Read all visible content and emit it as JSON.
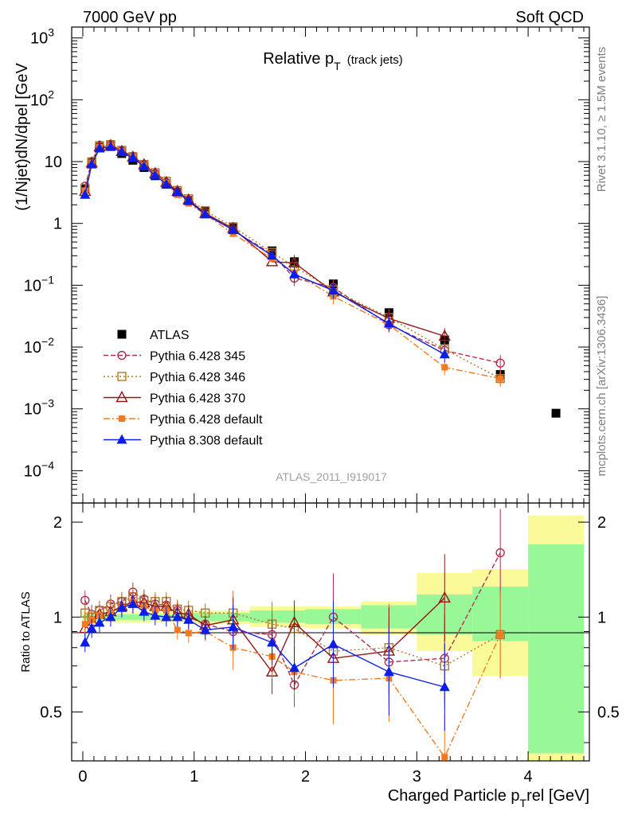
{
  "header": {
    "left": "7000 GeV pp",
    "right": "Soft QCD"
  },
  "side": {
    "rivet": "Rivet 3.1.10, ≥ 1.5M events",
    "mcplots": "mcplots.cern.ch [arXiv:1306.3436]"
  },
  "colors": {
    "ATLAS": "#000000",
    "Pythia 6.428 345": "#b03050",
    "Pythia 6.428 346": "#b07828",
    "Pythia 6.428 370": "#901818",
    "Pythia 6.428 default": "#f47a20",
    "Pythia 8.308 default": "#0a1ee8",
    "band_inner": "#98f898",
    "band_outer": "#fafa98"
  },
  "chart_data": {
    "type": "scatter",
    "title": "Relative p_T (track jets)",
    "title_main": "Relative p",
    "title_sub": "T",
    "title_note": "(track jets)",
    "watermark": "ATLAS_2011_I919017",
    "xlabel": "Charged Particle p",
    "xlabel_sub": "T",
    "xlabel_suffix": "rel [GeV]",
    "ylabel": "(1/Njet)dN/dp",
    "ylabel_suffix": "el [GeV",
    "ratio_ylabel": "Ratio to ATLAS",
    "xlim": [
      -0.1,
      4.55
    ],
    "ylim": [
      3e-05,
      1500
    ],
    "ylog": true,
    "ratio_ylim": [
      0.35,
      2.3
    ],
    "x_ticks": [
      "0",
      "1",
      "2",
      "3",
      "4"
    ],
    "y_ticks": [
      "10^-4",
      "10^-3",
      "10^-2",
      "10^-1",
      "1",
      "10",
      "10^2",
      "10^3"
    ],
    "ratio_ticks": [
      "0.5",
      "1",
      "2"
    ],
    "legend_position": "lower-left",
    "x": [
      0.02,
      0.08,
      0.15,
      0.25,
      0.35,
      0.45,
      0.55,
      0.65,
      0.75,
      0.85,
      0.95,
      1.1,
      1.35,
      1.7,
      1.9,
      2.25,
      2.75,
      3.25,
      3.75,
      4.25
    ],
    "series": [
      {
        "name": "ATLAS",
        "marker": "filled-square",
        "values": [
          3.6,
          9.8,
          17,
          17.5,
          13.5,
          10.5,
          8.0,
          5.9,
          4.3,
          3.2,
          2.35,
          1.55,
          0.85,
          0.36,
          0.24,
          0.105,
          0.036,
          0.013,
          0.0036,
          0.00085
        ]
      },
      {
        "name": "Pythia 6.428 345",
        "marker": "open-circle",
        "style": "dashed",
        "values": [
          4.0,
          10.0,
          18.5,
          19.0,
          15.0,
          12.2,
          8.9,
          6.4,
          4.6,
          3.3,
          2.35,
          1.5,
          0.77,
          0.32,
          0.13,
          0.092,
          0.023,
          0.0088,
          0.0055,
          null
        ],
        "ratio": [
          1.13,
          1.02,
          1.05,
          1.1,
          1.12,
          1.2,
          1.14,
          1.1,
          1.09,
          1.05,
          1.0,
          0.95,
          0.9,
          0.88,
          0.61,
          1.0,
          0.72,
          0.74,
          1.6,
          null
        ]
      },
      {
        "name": "Pythia 6.428 346",
        "marker": "open-square",
        "style": "dotted",
        "values": [
          3.7,
          9.9,
          18.0,
          18.8,
          15.2,
          12.0,
          9.0,
          6.6,
          4.8,
          3.4,
          2.5,
          1.6,
          0.88,
          0.34,
          0.2,
          0.084,
          0.03,
          0.0092,
          0.0031,
          null
        ],
        "ratio": [
          1.03,
          1.0,
          1.05,
          1.08,
          1.12,
          1.16,
          1.13,
          1.12,
          1.12,
          1.06,
          1.05,
          1.03,
          1.03,
          0.95,
          0.92,
          0.78,
          0.8,
          0.7,
          0.88,
          null
        ]
      },
      {
        "name": "Pythia 6.428 370",
        "marker": "open-triangle",
        "style": "solid",
        "values": [
          3.3,
          9.5,
          17.3,
          18.2,
          14.6,
          11.8,
          8.9,
          6.4,
          4.6,
          3.3,
          2.4,
          1.45,
          0.83,
          0.24,
          0.23,
          0.078,
          0.029,
          0.015,
          null,
          null
        ],
        "ratio": [
          0.92,
          0.97,
          1.02,
          1.04,
          1.08,
          1.12,
          1.11,
          1.08,
          1.08,
          1.03,
          1.02,
          0.94,
          0.98,
          0.67,
          0.96,
          0.74,
          0.78,
          1.15,
          null,
          null
        ]
      },
      {
        "name": "Pythia 6.428 default",
        "marker": "filled-square-small",
        "style": "dashdot",
        "values": [
          3.4,
          9.6,
          17.2,
          18.0,
          14.5,
          11.7,
          8.6,
          6.2,
          4.5,
          2.9,
          2.1,
          1.4,
          0.68,
          0.27,
          0.16,
          0.066,
          0.023,
          0.0047,
          0.0031,
          null
        ],
        "ratio": [
          0.95,
          0.98,
          1.01,
          1.03,
          1.07,
          1.11,
          1.08,
          1.05,
          1.05,
          0.91,
          0.89,
          0.9,
          0.8,
          0.75,
          0.67,
          0.63,
          0.64,
          0.36,
          0.88,
          null
        ]
      },
      {
        "name": "Pythia 8.308 default",
        "marker": "filled-triangle",
        "style": "solid",
        "values": [
          2.9,
          9.0,
          16.3,
          17.4,
          14.4,
          11.5,
          8.3,
          6.0,
          4.3,
          3.2,
          2.3,
          1.4,
          0.78,
          0.3,
          0.15,
          0.082,
          0.024,
          0.0076,
          null,
          null
        ],
        "ratio": [
          0.83,
          0.92,
          0.96,
          1.0,
          1.07,
          1.1,
          1.04,
          1.01,
          1.0,
          1.0,
          0.98,
          0.91,
          0.93,
          0.83,
          0.69,
          0.82,
          0.67,
          0.6,
          null,
          null
        ]
      }
    ],
    "ratio_bands": [
      {
        "x": [
          0.0,
          1.0
        ],
        "inner": [
          0.98,
          1.02
        ],
        "outer": [
          0.96,
          1.04
        ]
      },
      {
        "x": [
          1.0,
          1.5
        ],
        "inner": [
          0.97,
          1.03
        ],
        "outer": [
          0.95,
          1.05
        ]
      },
      {
        "x": [
          1.5,
          2.0
        ],
        "inner": [
          0.96,
          1.05
        ],
        "outer": [
          0.93,
          1.08
        ]
      },
      {
        "x": [
          2.0,
          2.5
        ],
        "inner": [
          0.95,
          1.06
        ],
        "outer": [
          0.92,
          1.08
        ]
      },
      {
        "x": [
          2.5,
          3.0
        ],
        "inner": [
          0.92,
          1.09
        ],
        "outer": [
          0.88,
          1.12
        ]
      },
      {
        "x": [
          3.0,
          3.5
        ],
        "inner": [
          0.88,
          1.18
        ],
        "outer": [
          0.78,
          1.38
        ]
      },
      {
        "x": [
          3.5,
          4.0
        ],
        "inner": [
          0.84,
          1.25
        ],
        "outer": [
          0.65,
          1.42
        ]
      },
      {
        "x": [
          4.0,
          4.5
        ],
        "inner": [
          0.37,
          1.7
        ],
        "outer": [
          0.35,
          2.1
        ]
      }
    ]
  }
}
